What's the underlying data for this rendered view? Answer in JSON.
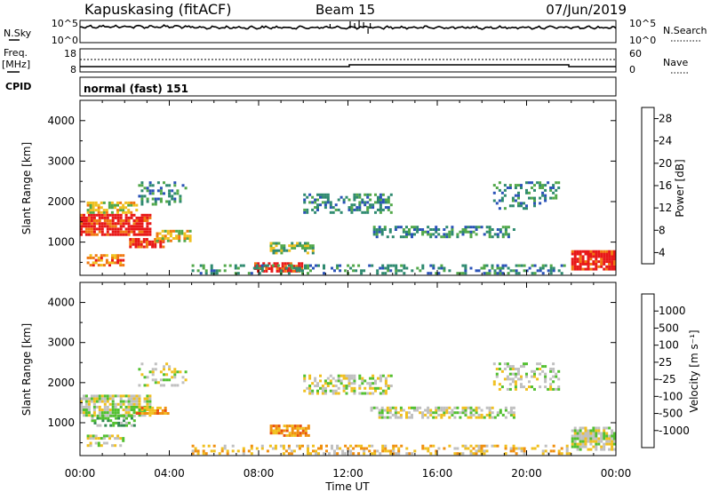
{
  "header": {
    "station": "Kapuskasing (fitACF)",
    "beam": "Beam 15",
    "date": "07/Jun/2019"
  },
  "noise_panel": {
    "left_label": "N.Sky",
    "right_label": "N.Search",
    "left_ticks": [
      "10^5",
      "10^0"
    ],
    "right_ticks": [
      "10^5",
      "10^0"
    ],
    "sky_color": "#000000"
  },
  "freq_panel": {
    "left_label_1": "Freq.",
    "left_label_2": "[MHz]",
    "right_label": "Nave",
    "left_ticks": [
      "18",
      "8"
    ],
    "right_ticks": [
      "60",
      "0"
    ]
  },
  "cpid_panel": {
    "label": "CPID",
    "mode": "normal (fast) 151"
  },
  "x_axis": {
    "label": "Time UT",
    "ticks": [
      "00:00",
      "04:00",
      "08:00",
      "12:00",
      "16:00",
      "20:00",
      "00:00"
    ],
    "hours": [
      0,
      4,
      8,
      12,
      16,
      20,
      24
    ]
  },
  "y_axis": {
    "label": "Slant Range [km]",
    "ticks": [
      "1000",
      "2000",
      "3000",
      "4000"
    ],
    "values": [
      1000,
      2000,
      3000,
      4000
    ],
    "range": [
      180,
      4500
    ]
  },
  "power_colorbar": {
    "label": "Power [dB]",
    "ticks": [
      "4",
      "8",
      "12",
      "16",
      "20",
      "24",
      "28"
    ],
    "colors": [
      "#1818ff",
      "#2a52b8",
      "#2f8a70",
      "#52a84a",
      "#f0c020",
      "#f07810",
      "#e81818"
    ]
  },
  "velocity_colorbar": {
    "label": "Velocity [m s⁻¹]",
    "ticks": [
      "1000",
      "500",
      "100",
      "25",
      "-25",
      "-100",
      "-500",
      "-1000"
    ],
    "colors": [
      "#2020d0",
      "#2a6ab0",
      "#2f8a50",
      "#52c030",
      "#c0c0c0",
      "#f0c020",
      "#f09010",
      "#e85010",
      "#e81818"
    ]
  },
  "chart_data": [
    {
      "type": "heatmap",
      "title": "Power",
      "xlabel": "Time UT",
      "ylabel": "Slant Range [km]",
      "xlim": [
        0,
        24
      ],
      "ylim": [
        180,
        4500
      ],
      "colorbar_label": "Power [dB]",
      "scatter_regions": [
        {
          "t0": 0.0,
          "t1": 3.2,
          "r0": 1150,
          "r1": 1700,
          "level": 6,
          "density": 0.85
        },
        {
          "t0": 0.3,
          "t1": 2.6,
          "r0": 1700,
          "r1": 2000,
          "level": 4,
          "density": 0.6
        },
        {
          "t0": 2.2,
          "t1": 3.8,
          "r0": 850,
          "r1": 1100,
          "level": 6,
          "density": 0.9
        },
        {
          "t0": 0.3,
          "t1": 2.0,
          "r0": 400,
          "r1": 700,
          "level": 5,
          "density": 0.6
        },
        {
          "t0": 3.4,
          "t1": 5.0,
          "r0": 1000,
          "r1": 1300,
          "level": 4,
          "density": 0.7
        },
        {
          "t0": 2.6,
          "t1": 4.8,
          "r0": 1900,
          "r1": 2500,
          "level": 2,
          "density": 0.35
        },
        {
          "t0": 7.8,
          "t1": 10.0,
          "r0": 250,
          "r1": 500,
          "level": 6,
          "density": 0.75
        },
        {
          "t0": 8.5,
          "t1": 10.5,
          "r0": 700,
          "r1": 1000,
          "level": 3,
          "density": 0.6
        },
        {
          "t0": 10.0,
          "t1": 14.0,
          "r0": 1700,
          "r1": 2200,
          "level": 2,
          "density": 0.45
        },
        {
          "t0": 13.0,
          "t1": 19.5,
          "r0": 1100,
          "r1": 1400,
          "level": 2,
          "density": 0.5
        },
        {
          "t0": 5.0,
          "t1": 22.0,
          "r0": 200,
          "r1": 450,
          "level": 2,
          "density": 0.35
        },
        {
          "t0": 18.5,
          "t1": 21.5,
          "r0": 1800,
          "r1": 2500,
          "level": 2,
          "density": 0.3
        },
        {
          "t0": 22.0,
          "t1": 24.0,
          "r0": 300,
          "r1": 800,
          "level": 6,
          "density": 0.85
        }
      ]
    },
    {
      "type": "heatmap",
      "title": "Velocity",
      "xlabel": "Time UT",
      "ylabel": "Slant Range [km]",
      "xlim": [
        0,
        24
      ],
      "ylim": [
        180,
        4500
      ],
      "colorbar_label": "Velocity [m s⁻¹]",
      "scatter_regions": [
        {
          "t0": 0.0,
          "t1": 3.2,
          "r0": 1150,
          "r1": 1700,
          "level": 4,
          "density": 0.8
        },
        {
          "t0": 0.5,
          "t1": 2.5,
          "r0": 900,
          "r1": 1200,
          "level": 3,
          "density": 0.5
        },
        {
          "t0": 2.5,
          "t1": 4.0,
          "r0": 1200,
          "r1": 1400,
          "level": 6,
          "density": 0.6
        },
        {
          "t0": 0.3,
          "t1": 2.0,
          "r0": 400,
          "r1": 700,
          "level": 4,
          "density": 0.5
        },
        {
          "t0": 2.6,
          "t1": 4.8,
          "r0": 1900,
          "r1": 2500,
          "level": 4,
          "density": 0.35
        },
        {
          "t0": 8.5,
          "t1": 10.3,
          "r0": 650,
          "r1": 950,
          "level": 6,
          "density": 0.75
        },
        {
          "t0": 10.0,
          "t1": 14.0,
          "r0": 1700,
          "r1": 2200,
          "level": 4,
          "density": 0.5
        },
        {
          "t0": 13.0,
          "t1": 19.5,
          "r0": 1100,
          "r1": 1400,
          "level": 4,
          "density": 0.5
        },
        {
          "t0": 5.0,
          "t1": 22.0,
          "r0": 200,
          "r1": 450,
          "level": 5,
          "density": 0.35
        },
        {
          "t0": 18.5,
          "t1": 21.5,
          "r0": 1800,
          "r1": 2500,
          "level": 4,
          "density": 0.3
        },
        {
          "t0": 22.0,
          "t1": 24.0,
          "r0": 300,
          "r1": 900,
          "level": 4,
          "density": 0.8
        }
      ]
    }
  ]
}
